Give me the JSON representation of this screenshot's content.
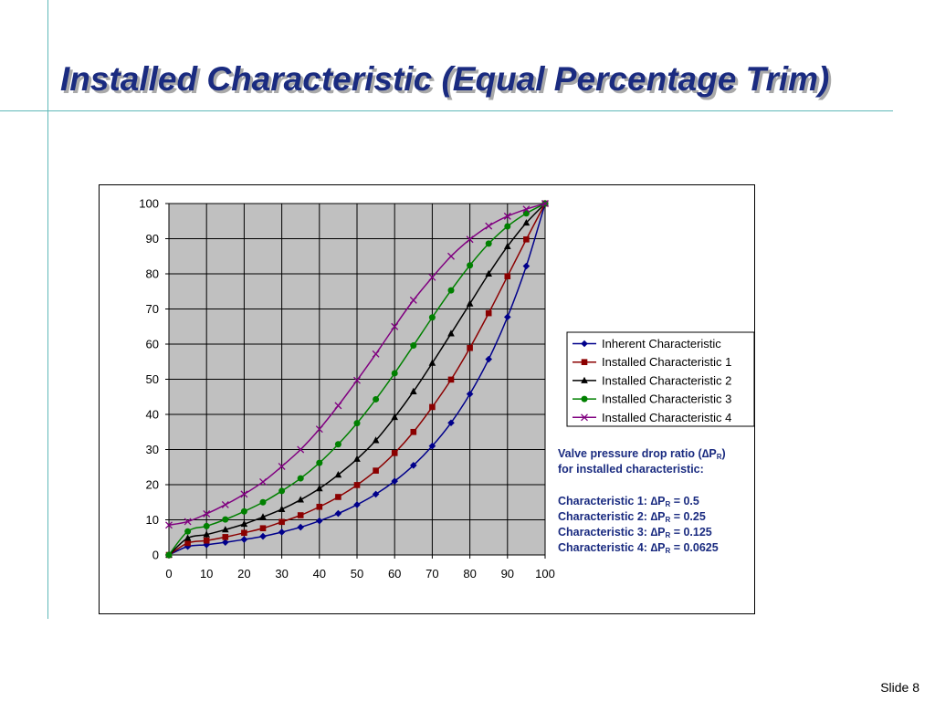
{
  "slide": {
    "title": "Installed Characteristic (Equal Percentage Trim)",
    "number": "Slide 8"
  },
  "colors": {
    "title": "#1a2b80",
    "title_shadow": "#a9a9a9",
    "plot_area": "#c0c0c0",
    "grid": "#000000",
    "rule_lines": "#5fb8b8",
    "notes": "#1a2b80"
  },
  "notes": {
    "heading_1": "Valve pressure drop ratio (",
    "heading_delta": "∆",
    "heading_p": "P",
    "heading_sub": "R",
    "heading_end": ")",
    "heading_2": "for installed characteristic:",
    "items": [
      {
        "label": "Characteristic 1: ",
        "delta": "∆",
        "p": "P",
        "sub": "R",
        "value": " = 0.5"
      },
      {
        "label": "Characteristic 2: ",
        "delta": "∆",
        "p": "P",
        "sub": "R",
        "value": " = 0.25"
      },
      {
        "label": "Characteristic 3: ",
        "delta": "∆",
        "p": "P",
        "sub": "R",
        "value": " = 0.125"
      },
      {
        "label": "Characteristic 4: ",
        "delta": "∆",
        "p": "P",
        "sub": "R",
        "value": " = 0.0625"
      }
    ]
  },
  "chart_data": {
    "type": "line",
    "title": "",
    "xlabel": "",
    "ylabel": "",
    "xlim": [
      0,
      100
    ],
    "ylim": [
      0,
      100
    ],
    "xticks": [
      0,
      10,
      20,
      30,
      40,
      50,
      60,
      70,
      80,
      90,
      100
    ],
    "yticks": [
      0,
      10,
      20,
      30,
      40,
      50,
      60,
      70,
      80,
      90,
      100
    ],
    "grid": true,
    "legend": "right",
    "x": [
      0,
      5,
      10,
      15,
      20,
      25,
      30,
      35,
      40,
      45,
      50,
      55,
      60,
      65,
      70,
      75,
      80,
      85,
      90,
      95,
      100
    ],
    "series": [
      {
        "name": "Inherent Characteristic",
        "color": "#00008b",
        "marker": "diamond",
        "values": [
          0,
          2.4,
          2.9,
          3.6,
          4.4,
          5.3,
          6.5,
          7.9,
          9.7,
          11.8,
          14.3,
          17.3,
          21.0,
          25.5,
          31.0,
          37.6,
          45.8,
          55.7,
          67.7,
          82.2,
          100
        ]
      },
      {
        "name": "Installed Characteristic 1",
        "color": "#8b0000",
        "marker": "square",
        "values": [
          0,
          3.4,
          4.1,
          5.1,
          6.3,
          7.6,
          9.4,
          11.3,
          13.7,
          16.5,
          19.9,
          24.0,
          29.0,
          35.0,
          42.1,
          49.9,
          58.9,
          68.8,
          79.3,
          89.8,
          100
        ]
      },
      {
        "name": "Installed Characteristic 2",
        "color": "#000000",
        "marker": "triangle",
        "values": [
          0,
          4.8,
          5.8,
          7.2,
          8.8,
          10.8,
          13.0,
          15.7,
          18.9,
          22.8,
          27.3,
          32.6,
          39.2,
          46.5,
          54.6,
          63.0,
          71.5,
          80.0,
          87.8,
          94.5,
          100
        ]
      },
      {
        "name": "Installed Characteristic 3",
        "color": "#008000",
        "marker": "circle",
        "values": [
          0,
          6.7,
          8.2,
          10.1,
          12.4,
          15.0,
          18.2,
          21.8,
          26.2,
          31.5,
          37.5,
          44.3,
          51.7,
          59.6,
          67.6,
          75.3,
          82.4,
          88.6,
          93.5,
          97.2,
          100
        ]
      },
      {
        "name": "Installed Characteristic 4",
        "color": "#800080",
        "marker": "x",
        "values": [
          8.5,
          9.5,
          11.7,
          14.3,
          17.3,
          20.8,
          25.2,
          30.0,
          35.8,
          42.5,
          49.7,
          57.2,
          65.0,
          72.5,
          79.0,
          85.0,
          89.8,
          93.6,
          96.4,
          98.4,
          100
        ]
      }
    ]
  }
}
